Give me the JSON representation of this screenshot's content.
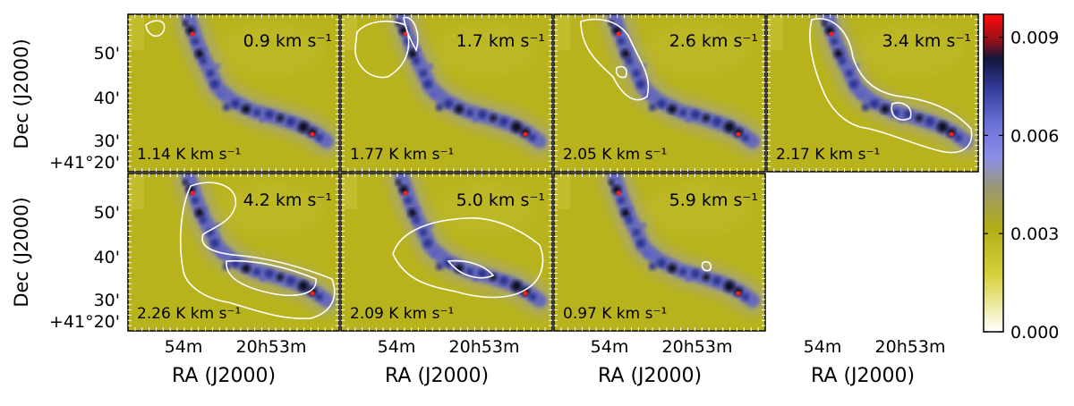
{
  "chart_data": {
    "type": "heatmap",
    "axes": {
      "ylabel": "Dec (J2000)",
      "xlabel": "RA (J2000)",
      "yticks": [
        "50'",
        "40'",
        "30'",
        "+41°20'"
      ],
      "xticks": [
        "54m",
        "20h53m"
      ]
    },
    "colorbar": {
      "ticks": [
        0.009,
        0.006,
        0.003,
        0.0
      ],
      "tick_labels": [
        "0.009",
        "0.006",
        "0.003",
        "0.000"
      ],
      "range": [
        0.0,
        0.0097
      ],
      "colormap": [
        "#ffffff",
        "#c6bf22",
        "#b1ab18",
        "#8f8f7a",
        "#8a8fe8",
        "#5b5fc4",
        "#272f8a",
        "#12153c",
        "#ff0000"
      ]
    },
    "panels": [
      {
        "velocity": "0.9",
        "intensity": "1.14"
      },
      {
        "velocity": "1.7",
        "intensity": "1.77"
      },
      {
        "velocity": "2.6",
        "intensity": "2.05"
      },
      {
        "velocity": "3.4",
        "intensity": "2.17"
      },
      {
        "velocity": "4.2",
        "intensity": "2.26"
      },
      {
        "velocity": "5.0",
        "intensity": "2.09"
      },
      {
        "velocity": "5.9",
        "intensity": "0.97"
      }
    ],
    "velocity_unit": "km s⁻¹",
    "intensity_unit": "K km s⁻¹"
  },
  "colors": {
    "background": "#b8b31c",
    "filament": "#5a5fc8",
    "contour": "#ffffff"
  }
}
